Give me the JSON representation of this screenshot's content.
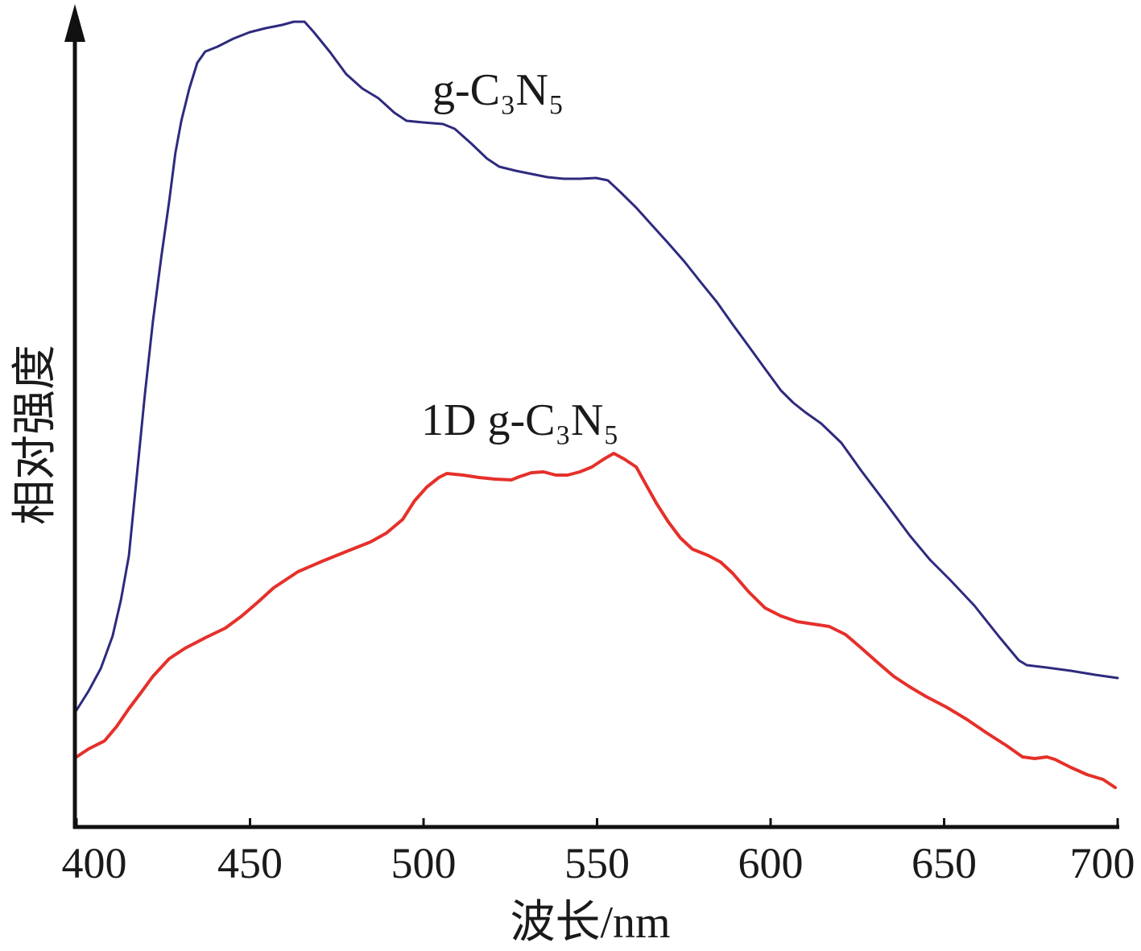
{
  "chart_data": {
    "type": "line",
    "title": "",
    "xlabel": "波长/nm",
    "ylabel": "相对强度",
    "xlim": [
      400,
      700
    ],
    "ylim": [
      0,
      100
    ],
    "x_ticks": [
      400,
      450,
      500,
      550,
      600,
      650,
      700
    ],
    "y_ticks": [],
    "grid": false,
    "legend": "none (curves labeled directly)",
    "series": [
      {
        "name": "g-C₃N₅",
        "color": "#2e2a7e",
        "points": [
          [
            400,
            14.5
          ],
          [
            403.5,
            16.9
          ],
          [
            407,
            19.7
          ],
          [
            410.4,
            23.7
          ],
          [
            412.8,
            28.2
          ],
          [
            415.1,
            33.7
          ],
          [
            417.4,
            43.7
          ],
          [
            419.7,
            53.7
          ],
          [
            422,
            62.7
          ],
          [
            424.4,
            70.7
          ],
          [
            426.7,
            77.7
          ],
          [
            428.5,
            83.7
          ],
          [
            430.2,
            87.7
          ],
          [
            432.5,
            91.7
          ],
          [
            434.8,
            94.9
          ],
          [
            437.1,
            96.3
          ],
          [
            440.6,
            96.9
          ],
          [
            445.2,
            97.9
          ],
          [
            449.9,
            98.7
          ],
          [
            454.5,
            99.2
          ],
          [
            459.2,
            99.6
          ],
          [
            462.6,
            100
          ],
          [
            465.7,
            100
          ],
          [
            468.4,
            98.7
          ],
          [
            473.1,
            96.2
          ],
          [
            477.7,
            93.5
          ],
          [
            482.4,
            91.7
          ],
          [
            487,
            90.5
          ],
          [
            491.6,
            88.7
          ],
          [
            495.1,
            87.7
          ],
          [
            499.8,
            87.5
          ],
          [
            505.6,
            87.3
          ],
          [
            509,
            86.7
          ],
          [
            513.7,
            84.9
          ],
          [
            518.3,
            83
          ],
          [
            521.8,
            82
          ],
          [
            526.5,
            81.5
          ],
          [
            531.1,
            81.1
          ],
          [
            535.7,
            80.7
          ],
          [
            540.4,
            80.5
          ],
          [
            545,
            80.5
          ],
          [
            549.7,
            80.6
          ],
          [
            553.1,
            80.3
          ],
          [
            556.6,
            78.9
          ],
          [
            561.3,
            76.9
          ],
          [
            565.9,
            74.7
          ],
          [
            570.5,
            72.5
          ],
          [
            575.2,
            70.2
          ],
          [
            579.8,
            67.7
          ],
          [
            584.5,
            65.2
          ],
          [
            589.1,
            62.4
          ],
          [
            593.7,
            59.7
          ],
          [
            598.4,
            56.9
          ],
          [
            603,
            54.2
          ],
          [
            606.5,
            52.7
          ],
          [
            610,
            51.5
          ],
          [
            614.6,
            50.1
          ],
          [
            620.4,
            47.7
          ],
          [
            626.2,
            44.2
          ],
          [
            633.2,
            40.2
          ],
          [
            640.1,
            36.2
          ],
          [
            645.9,
            33.2
          ],
          [
            651.7,
            30.7
          ],
          [
            658.7,
            27.5
          ],
          [
            665.7,
            23.7
          ],
          [
            671.5,
            20.7
          ],
          [
            673.8,
            20.1
          ],
          [
            679.6,
            19.8
          ],
          [
            686.5,
            19.4
          ],
          [
            693.5,
            18.9
          ],
          [
            700,
            18.5
          ]
        ]
      },
      {
        "name": "1D g-C₃N₅",
        "color": "#e5302a",
        "points": [
          [
            400,
            8.7
          ],
          [
            403.5,
            9.7
          ],
          [
            408.1,
            10.7
          ],
          [
            411.6,
            12.5
          ],
          [
            415.1,
            14.7
          ],
          [
            418.6,
            16.7
          ],
          [
            422,
            18.7
          ],
          [
            426.7,
            20.9
          ],
          [
            431.3,
            22.2
          ],
          [
            437.1,
            23.5
          ],
          [
            442.9,
            24.7
          ],
          [
            447.6,
            26.2
          ],
          [
            452.2,
            27.9
          ],
          [
            456.8,
            29.7
          ],
          [
            463.8,
            31.7
          ],
          [
            470.8,
            33
          ],
          [
            477.7,
            34.2
          ],
          [
            484.7,
            35.4
          ],
          [
            489.3,
            36.5
          ],
          [
            494,
            38.2
          ],
          [
            497.4,
            40.5
          ],
          [
            500.9,
            42.2
          ],
          [
            504.4,
            43.4
          ],
          [
            506.7,
            43.9
          ],
          [
            511.4,
            43.7
          ],
          [
            516,
            43.4
          ],
          [
            520.6,
            43.2
          ],
          [
            525.3,
            43.1
          ],
          [
            527.6,
            43.5
          ],
          [
            531.1,
            44
          ],
          [
            534.6,
            44.1
          ],
          [
            538.1,
            43.7
          ],
          [
            541.5,
            43.7
          ],
          [
            545,
            44.1
          ],
          [
            548.5,
            44.7
          ],
          [
            552,
            45.7
          ],
          [
            554.8,
            46.4
          ],
          [
            557.8,
            45.7
          ],
          [
            561.3,
            44.7
          ],
          [
            563.6,
            42.9
          ],
          [
            567.1,
            40.2
          ],
          [
            570.5,
            37.9
          ],
          [
            574,
            35.9
          ],
          [
            577.5,
            34.5
          ],
          [
            582.1,
            33.7
          ],
          [
            585.6,
            32.9
          ],
          [
            589.1,
            31.5
          ],
          [
            593.7,
            29.2
          ],
          [
            598.4,
            27.2
          ],
          [
            603,
            26.2
          ],
          [
            607.7,
            25.5
          ],
          [
            612.3,
            25.2
          ],
          [
            616.9,
            24.9
          ],
          [
            621.6,
            23.9
          ],
          [
            626.2,
            22.2
          ],
          [
            630.9,
            20.4
          ],
          [
            635.5,
            18.7
          ],
          [
            640.1,
            17.4
          ],
          [
            644.8,
            16.2
          ],
          [
            650.6,
            14.9
          ],
          [
            656.4,
            13.4
          ],
          [
            662.2,
            11.7
          ],
          [
            668,
            10.1
          ],
          [
            672.6,
            8.7
          ],
          [
            676.1,
            8.5
          ],
          [
            679.6,
            8.7
          ],
          [
            681.9,
            8.4
          ],
          [
            686.5,
            7.4
          ],
          [
            691.2,
            6.5
          ],
          [
            695.8,
            5.9
          ],
          [
            699.3,
            4.9
          ]
        ]
      }
    ]
  }
}
